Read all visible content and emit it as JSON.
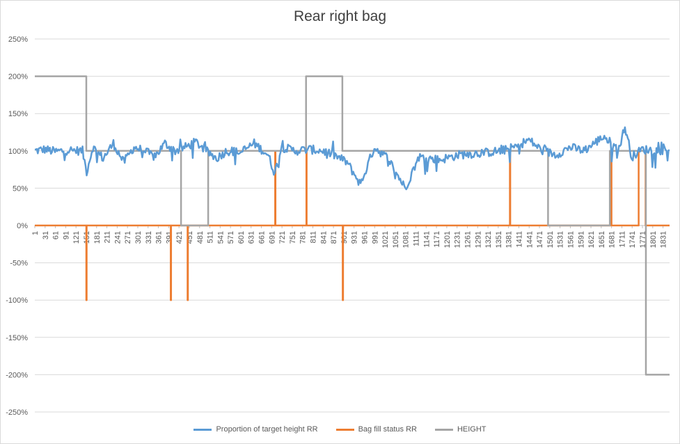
{
  "chart_data": {
    "type": "line",
    "title": "Rear right bag",
    "xlabel": "",
    "ylabel": "",
    "ylim": [
      -2.5,
      2.5
    ],
    "xlim": [
      1,
      1850
    ],
    "y_ticks": [
      "250%",
      "200%",
      "150%",
      "100%",
      "50%",
      "0%",
      "-50%",
      "-100%",
      "-150%",
      "-200%",
      "-250%"
    ],
    "x_tick_start": 1,
    "x_tick_step": 30,
    "x_tick_end": 1831,
    "legend_position": "bottom",
    "grid": true,
    "series": [
      {
        "name": "Proportion of target height RR",
        "color": "#5B9BD5",
        "style": "noisy",
        "points": [
          [
            1,
            1.0
          ],
          [
            30,
            1.02
          ],
          [
            60,
            0.99
          ],
          [
            100,
            1.01
          ],
          [
            140,
            1.0
          ],
          [
            152,
            0.72
          ],
          [
            170,
            1.05
          ],
          [
            200,
            0.9
          ],
          [
            230,
            1.1
          ],
          [
            260,
            0.85
          ],
          [
            290,
            1.05
          ],
          [
            320,
            1.0
          ],
          [
            350,
            0.92
          ],
          [
            380,
            1.1
          ],
          [
            410,
            1.0
          ],
          [
            440,
            1.05
          ],
          [
            470,
            1.12
          ],
          [
            500,
            1.0
          ],
          [
            530,
            0.9
          ],
          [
            560,
            1.0
          ],
          [
            600,
            0.98
          ],
          [
            640,
            1.1
          ],
          [
            680,
            0.95
          ],
          [
            700,
            0.7
          ],
          [
            720,
            1.05
          ],
          [
            760,
            1.0
          ],
          [
            800,
            1.02
          ],
          [
            840,
            1.0
          ],
          [
            870,
            0.95
          ],
          [
            910,
            0.85
          ],
          [
            950,
            0.55
          ],
          [
            990,
            1.05
          ],
          [
            1030,
            0.9
          ],
          [
            1080,
            0.5
          ],
          [
            1120,
            0.92
          ],
          [
            1180,
            0.88
          ],
          [
            1240,
            0.95
          ],
          [
            1300,
            0.97
          ],
          [
            1360,
            1.0
          ],
          [
            1400,
            1.05
          ],
          [
            1440,
            1.15
          ],
          [
            1480,
            1.0
          ],
          [
            1520,
            0.95
          ],
          [
            1560,
            1.05
          ],
          [
            1600,
            1.0
          ],
          [
            1660,
            1.2
          ],
          [
            1700,
            1.0
          ],
          [
            1720,
            1.32
          ],
          [
            1740,
            0.92
          ],
          [
            1770,
            1.02
          ],
          [
            1800,
            1.01
          ],
          [
            1850,
            1.01
          ]
        ]
      },
      {
        "name": "Bag fill status RR",
        "color": "#ED7D31",
        "style": "step",
        "points": [
          [
            1,
            0
          ],
          [
            151,
            0
          ],
          [
            151,
            -1
          ],
          [
            152,
            -1
          ],
          [
            152,
            0
          ],
          [
            397,
            0
          ],
          [
            397,
            -1
          ],
          [
            398,
            -1
          ],
          [
            398,
            0
          ],
          [
            446,
            0
          ],
          [
            446,
            -1
          ],
          [
            447,
            -1
          ],
          [
            447,
            0
          ],
          [
            701,
            0
          ],
          [
            701,
            1
          ],
          [
            702,
            1
          ],
          [
            702,
            0
          ],
          [
            792,
            0
          ],
          [
            792,
            1
          ],
          [
            793,
            1
          ],
          [
            793,
            0
          ],
          [
            898,
            0
          ],
          [
            898,
            -1
          ],
          [
            899,
            -1
          ],
          [
            899,
            0
          ],
          [
            1385,
            0
          ],
          [
            1385,
            1
          ],
          [
            1386,
            1
          ],
          [
            1386,
            0
          ],
          [
            1680,
            0
          ],
          [
            1680,
            1
          ],
          [
            1681,
            1
          ],
          [
            1681,
            0
          ],
          [
            1760,
            0
          ],
          [
            1760,
            1
          ],
          [
            1780,
            1
          ],
          [
            1780,
            0
          ],
          [
            1850,
            0
          ]
        ]
      },
      {
        "name": "HEIGHT",
        "color": "#A5A5A5",
        "style": "step",
        "points": [
          [
            1,
            2
          ],
          [
            151,
            2
          ],
          [
            151,
            1
          ],
          [
            427,
            1
          ],
          [
            427,
            0
          ],
          [
            506,
            0
          ],
          [
            506,
            1
          ],
          [
            791,
            1
          ],
          [
            791,
            2
          ],
          [
            897,
            2
          ],
          [
            897,
            1
          ],
          [
            1496,
            1
          ],
          [
            1496,
            0
          ],
          [
            1676,
            0
          ],
          [
            1676,
            1
          ],
          [
            1781,
            1
          ],
          [
            1781,
            -2
          ],
          [
            1850,
            -2
          ]
        ]
      }
    ]
  }
}
